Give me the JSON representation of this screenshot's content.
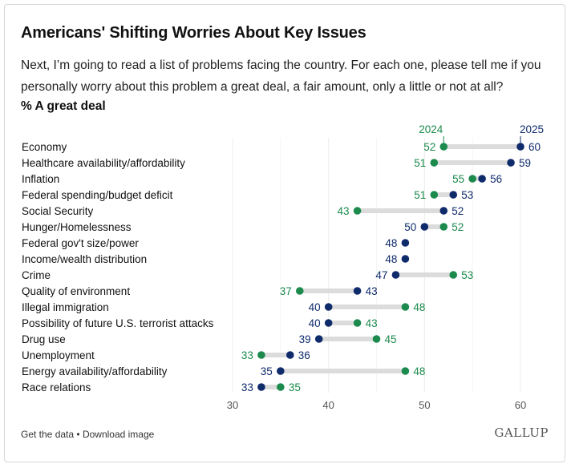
{
  "header": {
    "title": "Americans' Shifting Worries About Key Issues",
    "subtitle": "Next, I’m going to read a list of problems facing the country. For each one, please tell me if you personally worry about this problem a great deal, a fair amount, only a little or not at all?",
    "measure": "% A great deal"
  },
  "footer": {
    "get_data": "Get the data",
    "separator": "•",
    "download": "Download image",
    "brand": "GALLUP"
  },
  "colors": {
    "series_2024": "#1b8a4c",
    "series_2025": "#0f2b6b",
    "connector": "#dcdcdc",
    "grid": "#ececec",
    "axis_text": "#555555"
  },
  "chart_data": {
    "type": "dot-plot",
    "title": "Americans' Shifting Worries About Key Issues",
    "subtitle": "% A great deal",
    "xlim": [
      30,
      60
    ],
    "xticks": [
      30,
      40,
      50,
      60
    ],
    "grid": true,
    "categories": [
      "Economy",
      "Healthcare availability/affordability",
      "Inflation",
      "Federal spending/budget deficit",
      "Social Security",
      "Hunger/Homelessness",
      "Federal gov't size/power",
      "Income/wealth distribution",
      "Crime",
      "Quality of environment",
      "Illegal immigration",
      "Possibility of future U.S. terrorist attacks",
      "Drug use",
      "Unemployment",
      "Energy availability/affordability",
      "Race relations"
    ],
    "series": [
      {
        "name": "2024",
        "values": [
          52,
          51,
          55,
          51,
          43,
          52,
          null,
          null,
          53,
          37,
          48,
          43,
          45,
          33,
          48,
          35
        ]
      },
      {
        "name": "2025",
        "values": [
          60,
          59,
          56,
          53,
          52,
          50,
          48,
          48,
          47,
          43,
          40,
          40,
          39,
          36,
          35,
          33
        ]
      }
    ]
  }
}
